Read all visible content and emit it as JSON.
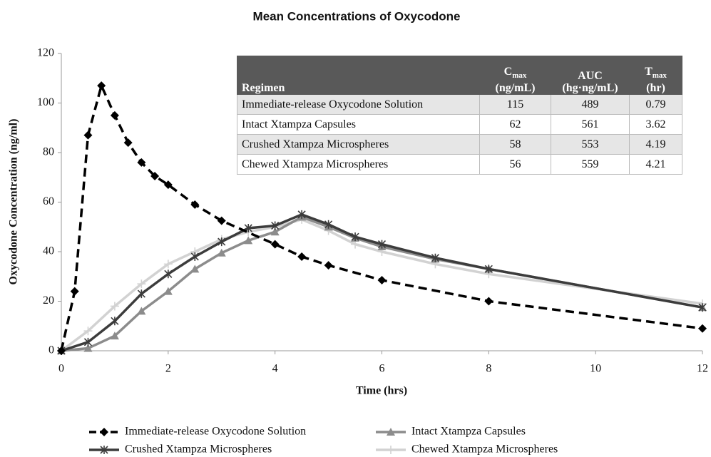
{
  "chart_data": {
    "type": "line",
    "title": "Mean Concentrations of Oxycodone",
    "xlabel": "Time (hrs)",
    "ylabel": "Oxycodone Concentration (ng/ml)",
    "xlim": [
      0,
      12
    ],
    "xticks": [
      0,
      2,
      4,
      6,
      8,
      10,
      12
    ],
    "ylim": [
      0,
      120
    ],
    "yticks": [
      0,
      20,
      40,
      60,
      80,
      100,
      120
    ],
    "grid": false,
    "legend": "bottom",
    "series": [
      {
        "name": "Chewed Xtampza Microspheres",
        "color": "#d2d2d2",
        "marker": "plus",
        "dash": false,
        "x": [
          0,
          0.5,
          1,
          1.5,
          2,
          2.5,
          3,
          3.5,
          4,
          4.5,
          5,
          5.5,
          6,
          7,
          8,
          12
        ],
        "values": [
          0,
          8,
          18,
          27,
          35,
          40,
          45,
          48,
          50,
          53,
          48.5,
          43,
          40,
          35,
          31,
          19
        ]
      },
      {
        "name": "Intact Xtampza Capsules",
        "color": "#8c8c8c",
        "marker": "triangle",
        "dash": false,
        "x": [
          0,
          0.5,
          1,
          1.5,
          2,
          2.5,
          3,
          3.5,
          4,
          4.5,
          5,
          5.5,
          6,
          7,
          8,
          12
        ],
        "values": [
          0,
          1,
          6,
          16,
          24,
          33,
          39.5,
          44.5,
          48,
          54,
          50,
          45.5,
          42,
          37,
          33,
          17.5
        ]
      },
      {
        "name": "Crushed Xtampza Microspheres",
        "color": "#3c3c3c",
        "marker": "star",
        "dash": false,
        "x": [
          0,
          0.5,
          1,
          1.5,
          2,
          2.5,
          3,
          3.5,
          4,
          4.5,
          5,
          5.5,
          6,
          7,
          8,
          12
        ],
        "values": [
          0,
          3.5,
          12,
          23,
          31,
          38,
          44,
          49.5,
          50.5,
          55,
          51,
          46,
          43,
          37.5,
          33,
          17.5
        ]
      },
      {
        "name": "Immediate-release Oxycodone Solution",
        "color": "#000000",
        "marker": "diamond",
        "dash": true,
        "x": [
          0,
          0.25,
          0.5,
          0.75,
          1,
          1.25,
          1.5,
          1.75,
          2,
          2.5,
          3,
          4,
          4.5,
          5,
          6,
          8,
          12
        ],
        "values": [
          0,
          24,
          87,
          107,
          95,
          84,
          76,
          70.5,
          67,
          59,
          52.5,
          43,
          38,
          34.5,
          28.5,
          20,
          9
        ]
      }
    ],
    "legend_order": [
      3,
      1,
      2,
      0
    ],
    "table": {
      "columns": [
        {
          "label": "Regimen"
        },
        {
          "symbol": "C",
          "subscript": "max",
          "unit": "(ng/mL)"
        },
        {
          "symbol": "AUC",
          "unit": "(hg·ng/mL)"
        },
        {
          "symbol": "T",
          "subscript": "max",
          "unit": "(hr)"
        }
      ],
      "rows": [
        [
          "Immediate-release Oxycodone Solution",
          115,
          489,
          0.79
        ],
        [
          "Intact Xtampza Capsules",
          62,
          561,
          3.62
        ],
        [
          "Crushed Xtampza Microspheres",
          58,
          553,
          4.19
        ],
        [
          "Chewed Xtampza Microspheres",
          56,
          559,
          4.21
        ]
      ]
    }
  }
}
